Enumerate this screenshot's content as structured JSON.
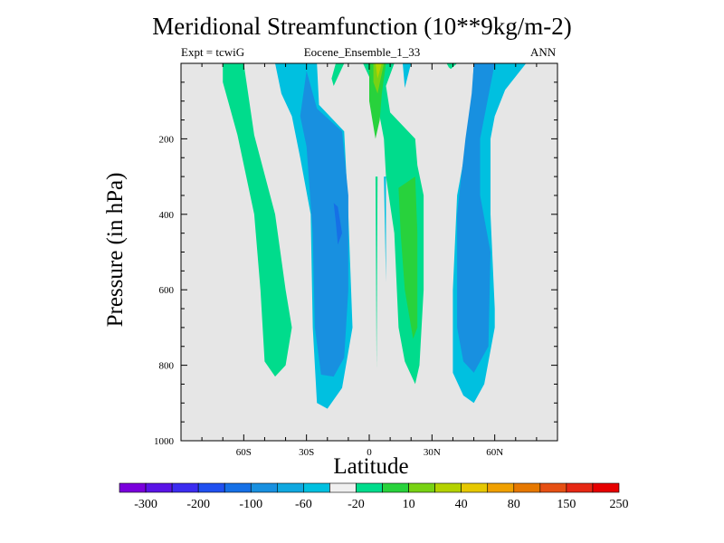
{
  "chart_data": {
    "type": "contour",
    "title": "Meridional Streamfunction (10**9kg/m-2)",
    "subtitle_left": "Expt = tcwiG",
    "subtitle_center": "Eocene_Ensemble_1_33",
    "subtitle_right": "ANN",
    "xlabel": "Latitude",
    "ylabel": "Pressure (in hPa)",
    "x_ticks": [
      {
        "value": -60,
        "label": "60S"
      },
      {
        "value": -30,
        "label": "30S"
      },
      {
        "value": 0,
        "label": "0"
      },
      {
        "value": 30,
        "label": "30N"
      },
      {
        "value": 60,
        "label": "60N"
      }
    ],
    "y_ticks": [
      {
        "value": 200,
        "label": "200"
      },
      {
        "value": 400,
        "label": "400"
      },
      {
        "value": 600,
        "label": "600"
      },
      {
        "value": 800,
        "label": "800"
      },
      {
        "value": 1000,
        "label": "1000"
      }
    ],
    "xlim": [
      -90,
      90
    ],
    "ylim": [
      1000,
      0
    ],
    "y_reversed": true,
    "background_color": "#e6e6e6",
    "colorbar": {
      "colors": [
        "#7a00dc",
        "#5a14e6",
        "#3c2cf0",
        "#2050f0",
        "#1670e6",
        "#1890e0",
        "#10a8e0",
        "#00c0e0",
        "#f0f0f0",
        "#00dc8c",
        "#28d23c",
        "#78d214",
        "#b4d200",
        "#e6c800",
        "#f0a000",
        "#e67800",
        "#e65014",
        "#e62814",
        "#e60000"
      ],
      "labels": [
        {
          "index": 1,
          "text": "-300"
        },
        {
          "index": 3,
          "text": "-200"
        },
        {
          "index": 5,
          "text": "-100"
        },
        {
          "index": 7,
          "text": "-60"
        },
        {
          "index": 9,
          "text": "-20"
        },
        {
          "index": 11,
          "text": "10"
        },
        {
          "index": 13,
          "text": "40"
        },
        {
          "index": 15,
          "text": "80"
        },
        {
          "index": 17,
          "text": "150"
        },
        {
          "index": 19,
          "text": "250"
        }
      ]
    },
    "regions": [
      {
        "name": "sh-outer-positive",
        "value": 10,
        "color": "#00dc8c",
        "points": [
          [
            -70,
            0
          ],
          [
            -60,
            0
          ],
          [
            -55,
            190
          ],
          [
            -45,
            400
          ],
          [
            -40,
            600
          ],
          [
            -37,
            700
          ],
          [
            -40,
            800
          ],
          [
            -45,
            830
          ],
          [
            -50,
            790
          ],
          [
            -52,
            600
          ],
          [
            -55,
            400
          ],
          [
            -63,
            190
          ],
          [
            -70,
            50
          ]
        ]
      },
      {
        "name": "sh-negative-outer",
        "value": -20,
        "color": "#00c0e0",
        "points": [
          [
            -45,
            0
          ],
          [
            -25,
            0
          ],
          [
            -24,
            110
          ],
          [
            -12,
            180
          ],
          [
            -10,
            400
          ],
          [
            -8,
            700
          ],
          [
            -13,
            860
          ],
          [
            -20,
            915
          ],
          [
            -25,
            900
          ],
          [
            -27,
            700
          ],
          [
            -28,
            400
          ],
          [
            -33,
            250
          ],
          [
            -37,
            140
          ],
          [
            -42,
            80
          ]
        ]
      },
      {
        "name": "sh-negative-core",
        "value": -60,
        "color": "#1890e0",
        "points": [
          [
            -30,
            20
          ],
          [
            -25,
            120
          ],
          [
            -13,
            180
          ],
          [
            -10,
            350
          ],
          [
            -10,
            600
          ],
          [
            -12,
            780
          ],
          [
            -17,
            830
          ],
          [
            -23,
            825
          ],
          [
            -26,
            700
          ],
          [
            -27,
            450
          ],
          [
            -30,
            220
          ],
          [
            -33,
            140
          ],
          [
            -31,
            60
          ]
        ]
      },
      {
        "name": "sh-negative-inner",
        "value": -100,
        "color": "#1670e6",
        "points": [
          [
            -17,
            370
          ],
          [
            -15,
            380
          ],
          [
            -13,
            450
          ],
          [
            -15,
            480
          ],
          [
            -16,
            420
          ]
        ]
      },
      {
        "name": "sh-inner-green-tongue",
        "value": 10,
        "color": "#00dc8c",
        "points": [
          [
            -16,
            0
          ],
          [
            -12,
            0
          ],
          [
            -17,
            60
          ],
          [
            -18,
            40
          ]
        ]
      },
      {
        "name": "eq-outer-positive",
        "value": 10,
        "color": "#00dc8c",
        "points": [
          [
            -3,
            0
          ],
          [
            12,
            0
          ],
          [
            8,
            60
          ],
          [
            10,
            130
          ],
          [
            22,
            200
          ],
          [
            23,
            270
          ],
          [
            26,
            350
          ],
          [
            26,
            600
          ],
          [
            24,
            800
          ],
          [
            22,
            850
          ],
          [
            17,
            790
          ],
          [
            14,
            700
          ],
          [
            12,
            450
          ],
          [
            8,
            300
          ],
          [
            7,
            200
          ],
          [
            4,
            110
          ],
          [
            2,
            60
          ]
        ]
      },
      {
        "name": "eq-positive-medium",
        "value": 40,
        "color": "#28d23c",
        "points": [
          [
            0,
            0
          ],
          [
            8,
            0
          ],
          [
            6,
            80
          ],
          [
            5,
            150
          ],
          [
            3,
            200
          ],
          [
            0,
            100
          ]
        ]
      },
      {
        "name": "nh-positive-medium",
        "value": 40,
        "color": "#28d23c",
        "points": [
          [
            14,
            330
          ],
          [
            22,
            300
          ],
          [
            23,
            450
          ],
          [
            23,
            700
          ],
          [
            21,
            730
          ],
          [
            17,
            600
          ],
          [
            15,
            450
          ]
        ]
      },
      {
        "name": "eq-positive-strong",
        "value": 80,
        "color": "#78d214",
        "points": [
          [
            2,
            0
          ],
          [
            7,
            0
          ],
          [
            4,
            80
          ],
          [
            2,
            50
          ]
        ]
      },
      {
        "name": "eq-positive-core",
        "value": 150,
        "color": "#b4d200",
        "points": [
          [
            3,
            0
          ],
          [
            6,
            0
          ],
          [
            4,
            40
          ]
        ]
      },
      {
        "name": "eq-green-sliver",
        "value": 10,
        "color": "#00dc8c",
        "points": [
          [
            3,
            300
          ],
          [
            4,
            300
          ],
          [
            3.5,
            810
          ]
        ]
      },
      {
        "name": "nh-negative-outer",
        "value": -20,
        "color": "#00c0e0",
        "points": [
          [
            50,
            0
          ],
          [
            75,
            0
          ],
          [
            65,
            70
          ],
          [
            60,
            140
          ],
          [
            58,
            200
          ],
          [
            58,
            400
          ],
          [
            60,
            650
          ],
          [
            60,
            700
          ],
          [
            55,
            850
          ],
          [
            50,
            900
          ],
          [
            45,
            880
          ],
          [
            40,
            820
          ],
          [
            40,
            600
          ],
          [
            42,
            350
          ],
          [
            47,
            200
          ],
          [
            49,
            100
          ]
        ]
      },
      {
        "name": "nh-negative-core",
        "value": -60,
        "color": "#1890e0",
        "points": [
          [
            50,
            0
          ],
          [
            60,
            0
          ],
          [
            53,
            200
          ],
          [
            53,
            350
          ],
          [
            58,
            500
          ],
          [
            57,
            750
          ],
          [
            50,
            820
          ],
          [
            45,
            790
          ],
          [
            42,
            700
          ],
          [
            42,
            400
          ],
          [
            46,
            200
          ],
          [
            49,
            80
          ]
        ]
      },
      {
        "name": "nh-upper-positive",
        "value": 10,
        "color": "#00dc8c",
        "points": [
          [
            37,
            0
          ],
          [
            42,
            0
          ],
          [
            39,
            15
          ],
          [
            38,
            10
          ]
        ]
      },
      {
        "name": "nh-upper-blue-tongue",
        "value": -20,
        "color": "#00c0e0",
        "points": [
          [
            16,
            0
          ],
          [
            20,
            0
          ],
          [
            17,
            65
          ]
        ]
      },
      {
        "name": "eq-blue-fleck",
        "value": -20,
        "color": "#00c0e0",
        "points": [
          [
            7,
            300
          ],
          [
            8,
            300
          ],
          [
            8,
            580
          ]
        ]
      }
    ]
  }
}
